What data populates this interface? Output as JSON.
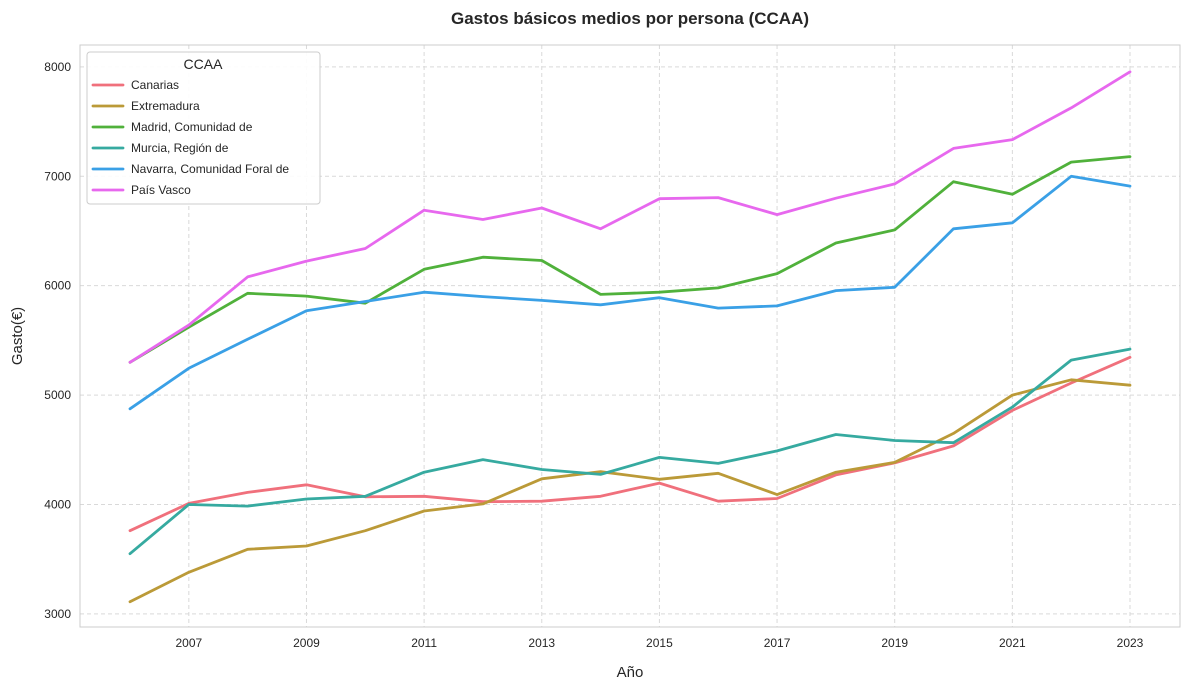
{
  "chart_data": {
    "type": "line",
    "title": "Gastos básicos medios por persona (CCAA)",
    "xlabel": "Año",
    "ylabel": "Gasto(€)",
    "xlim": [
      2005.15,
      2023.85
    ],
    "ylim": [
      2880,
      8200
    ],
    "x": [
      2006,
      2007,
      2008,
      2009,
      2010,
      2011,
      2012,
      2013,
      2014,
      2015,
      2016,
      2017,
      2018,
      2019,
      2020,
      2021,
      2022,
      2023
    ],
    "x_ticks": [
      2007,
      2009,
      2011,
      2013,
      2015,
      2017,
      2019,
      2021,
      2023
    ],
    "y_ticks": [
      3000,
      4000,
      5000,
      6000,
      7000,
      8000
    ],
    "grid": true,
    "legend": {
      "title": "CCAA",
      "position": "top-left"
    },
    "series": [
      {
        "name": "Canarias",
        "color": "#f0707c",
        "values": [
          3760,
          4010,
          4110,
          4180,
          4070,
          4075,
          4025,
          4030,
          4075,
          4195,
          4030,
          4055,
          4270,
          4380,
          4535,
          4860,
          5110,
          5345
        ]
      },
      {
        "name": "Extremadura",
        "color": "#bb9a38",
        "values": [
          3110,
          3380,
          3590,
          3620,
          3760,
          3940,
          4005,
          4235,
          4300,
          4230,
          4285,
          4090,
          4295,
          4385,
          4650,
          5000,
          5140,
          5090
        ]
      },
      {
        "name": "Madrid, Comunidad de",
        "color": "#50b13b",
        "values": [
          5300,
          5620,
          5930,
          5905,
          5840,
          6150,
          6260,
          6230,
          5920,
          5940,
          5980,
          6110,
          6390,
          6510,
          6950,
          6835,
          7130,
          7180
        ]
      },
      {
        "name": "Murcia, Región de",
        "color": "#36aaa0",
        "values": [
          3550,
          4000,
          3985,
          4050,
          4075,
          4295,
          4410,
          4320,
          4275,
          4430,
          4375,
          4490,
          4640,
          4585,
          4565,
          4890,
          5320,
          5420
        ]
      },
      {
        "name": "Navarra, Comunidad Foral de",
        "color": "#3aa0e6",
        "values": [
          4875,
          5245,
          5510,
          5770,
          5855,
          5940,
          5900,
          5865,
          5825,
          5890,
          5795,
          5815,
          5955,
          5985,
          6520,
          6575,
          7000,
          6910
        ]
      },
      {
        "name": "País Vasco",
        "color": "#e768ee",
        "values": [
          5300,
          5640,
          6080,
          6225,
          6340,
          6690,
          6605,
          6710,
          6520,
          6795,
          6805,
          6650,
          6800,
          6930,
          7255,
          7335,
          7625,
          7955
        ]
      }
    ]
  }
}
